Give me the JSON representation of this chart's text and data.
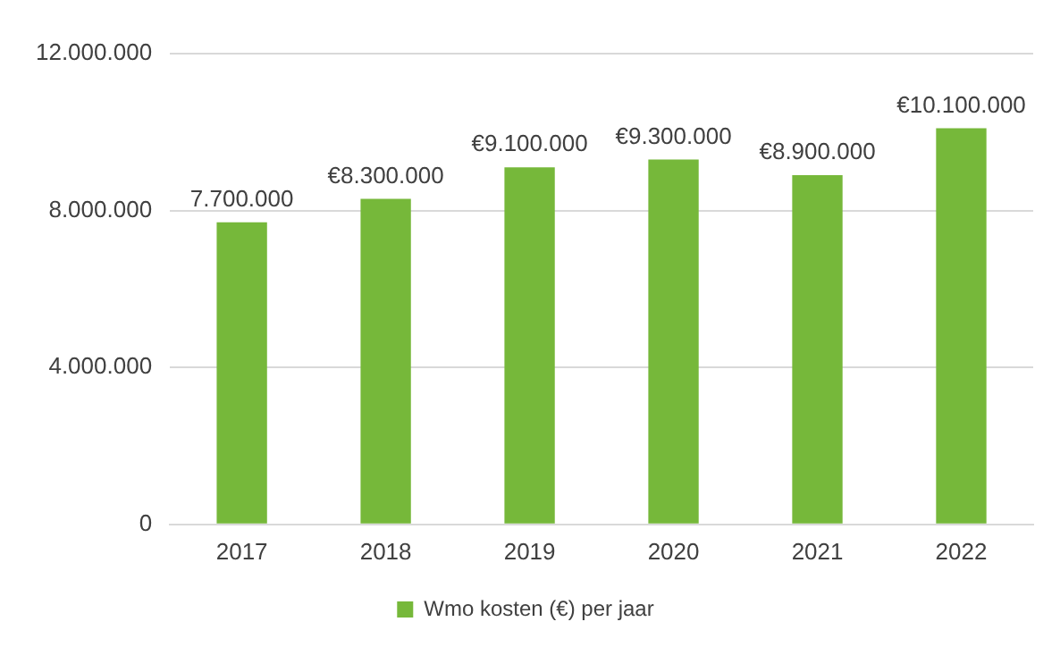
{
  "chart_data": {
    "type": "bar",
    "categories": [
      "2017",
      "2018",
      "2019",
      "2020",
      "2021",
      "2022"
    ],
    "series": [
      {
        "name": "Wmo kosten (€) per jaar",
        "color": "#76b83a",
        "values": [
          7700000,
          8300000,
          9100000,
          9300000,
          8900000,
          10100000
        ],
        "value_labels": [
          "7.700.000",
          "€8.300.000",
          "€9.100.000",
          "€9.300.000",
          "€8.900.000",
          "€10.100.000"
        ]
      }
    ],
    "ylim": [
      0,
      12000000
    ],
    "yticks": [
      {
        "value": 0,
        "label": "0"
      },
      {
        "value": 4000000,
        "label": "4.000.000"
      },
      {
        "value": 8000000,
        "label": "8.000.000"
      },
      {
        "value": 12000000,
        "label": "12.000.000"
      }
    ],
    "grid": "y",
    "legend": "bottom"
  }
}
